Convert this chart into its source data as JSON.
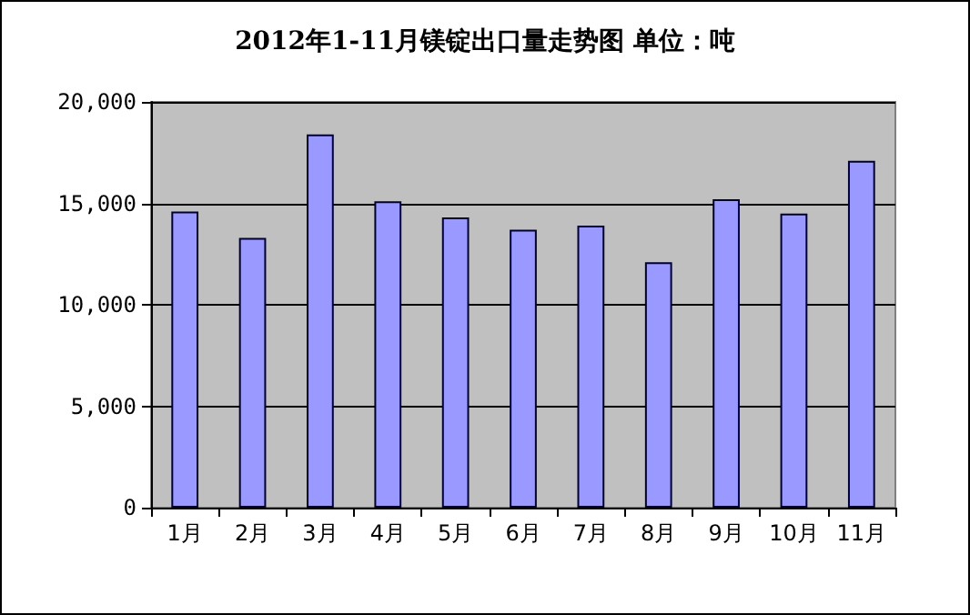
{
  "chart_data": {
    "type": "bar",
    "title": "2012年1-11月镁锭出口量走势图 单位：吨",
    "categories": [
      "1月",
      "2月",
      "3月",
      "4月",
      "5月",
      "6月",
      "7月",
      "8月",
      "9月",
      "10月",
      "11月"
    ],
    "values": [
      14600,
      13300,
      18400,
      15100,
      14300,
      13700,
      13900,
      12100,
      15200,
      14500,
      17100
    ],
    "color": "#9999ff",
    "ylim": [
      0,
      20000
    ],
    "yticks": [
      0,
      {
        "value": 5000,
        "label": "5,000"
      },
      {
        "value": 10000,
        "label": "10,000"
      },
      {
        "value": 15000,
        "label": "15,000"
      },
      {
        "value": 20000,
        "label": "20,000"
      }
    ],
    "grid": "y"
  }
}
